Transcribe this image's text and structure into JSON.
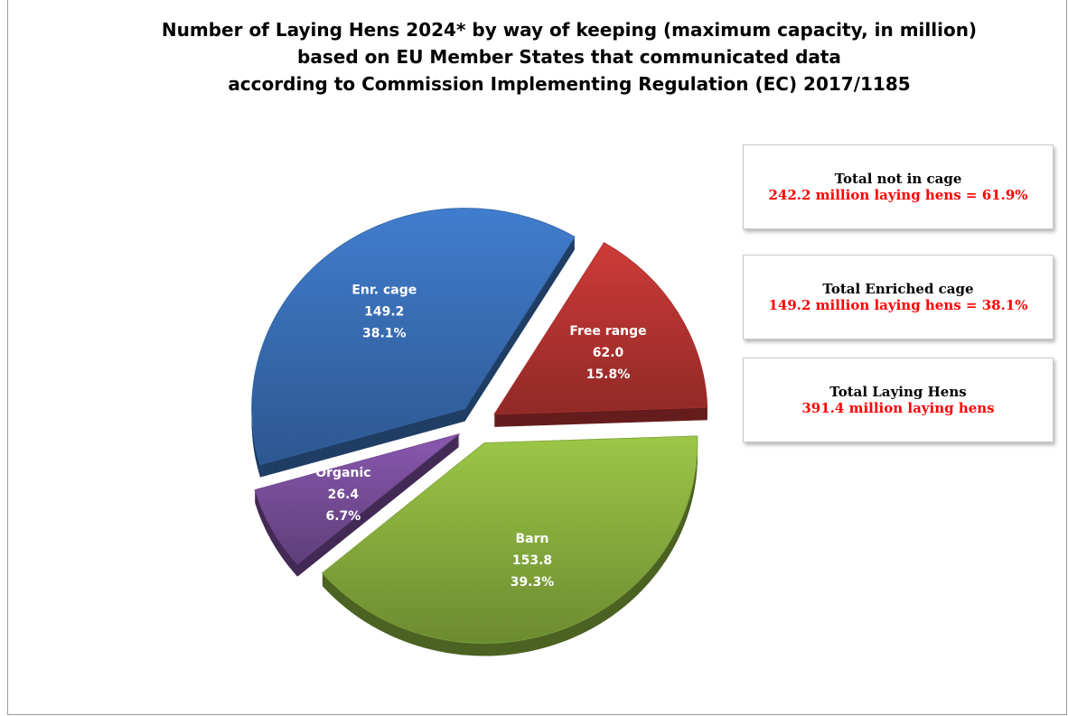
{
  "chart_data": {
    "type": "pie",
    "title": [
      "Number of Laying Hens 2024* by way of keeping (maximum capacity, in million)",
      "based on EU Member States that communicated data",
      "according to Commission Implementing Regulation (EC) 2017/1185"
    ],
    "slices": [
      {
        "name": "Free range",
        "value": 62.0,
        "value_label": "62.0",
        "percent_label": "15.8%",
        "color": "#b83532"
      },
      {
        "name": "Barn",
        "value": 153.8,
        "value_label": "153.8",
        "percent_label": "39.3%",
        "color": "#8bb23f"
      },
      {
        "name": "Organic",
        "value": 26.4,
        "value_label": "26.4",
        "percent_label": "6.7%",
        "color": "#7a4f9c"
      },
      {
        "name": "Enr. cage",
        "value": 149.2,
        "value_label": "149.2",
        "percent_label": "38.1%",
        "color": "#3a70b8"
      }
    ],
    "exploded": true,
    "style": "3d"
  },
  "summary": [
    {
      "header": "Total not in cage",
      "value": "242.2 million laying hens = 61.9%"
    },
    {
      "header": "Total Enriched cage",
      "value": "149.2 million laying hens = 38.1%"
    },
    {
      "header": "Total Laying Hens",
      "value": "391.4 million laying hens"
    }
  ]
}
